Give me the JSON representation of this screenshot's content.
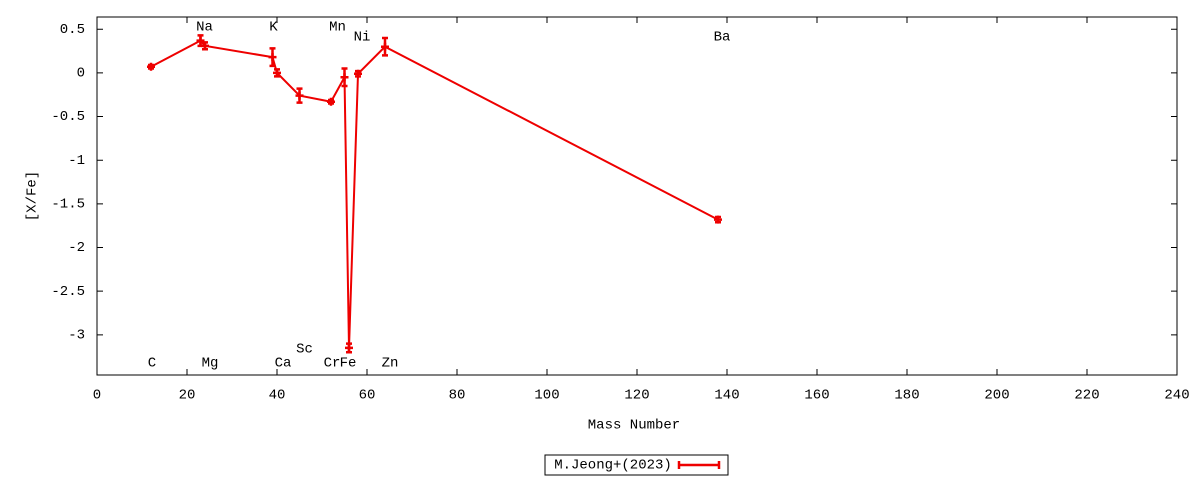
{
  "chart_data": {
    "type": "line",
    "x_label": "Mass Number",
    "y_label": "[X/Fe]",
    "x": [
      12,
      23,
      24,
      39,
      40,
      45,
      52,
      55,
      56,
      58,
      64,
      138
    ],
    "point_labels": [
      "C",
      "Na",
      "Mg",
      "K",
      "Ca",
      "Sc",
      "Cr",
      "Mn",
      "Fe",
      "Ni",
      "Zn",
      "Ba"
    ],
    "series": [
      {
        "name": "M.Jeong+(2023)",
        "color": "#ee0000",
        "values": [
          0.07,
          0.37,
          0.31,
          0.18,
          0.0,
          -0.26,
          -0.33,
          -0.05,
          -3.15,
          -0.01,
          0.3,
          -1.68
        ],
        "errors": [
          0.02,
          0.06,
          0.04,
          0.1,
          0.04,
          0.08,
          0.02,
          0.1,
          0.05,
          0.03,
          0.1,
          0.03
        ]
      }
    ],
    "xlim": [
      0,
      240
    ],
    "xticks": [
      0,
      20,
      40,
      60,
      80,
      100,
      120,
      140,
      160,
      180,
      200,
      220,
      240
    ],
    "ylim": [
      -3.46,
      0.64
    ],
    "yticks": [
      0.5,
      0,
      -0.5,
      -1,
      -1.5,
      -2,
      -2.5,
      -3
    ],
    "grid": false,
    "legend": "bottom"
  }
}
